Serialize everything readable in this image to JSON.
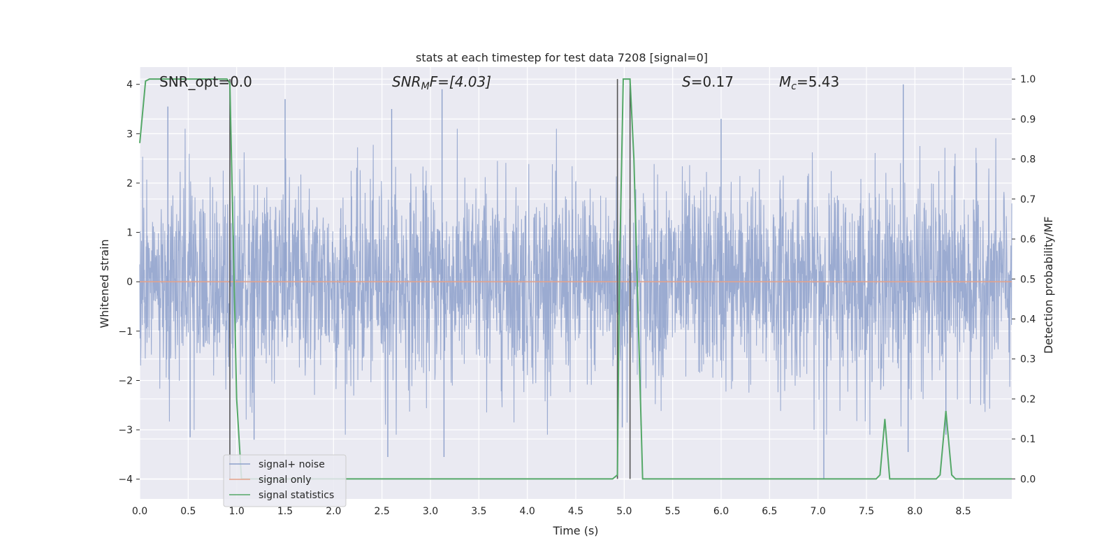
{
  "chart_data": {
    "type": "line",
    "title": "stats at each timestep for test data 7208 [signal=0]",
    "xlabel": "Time (s)",
    "ylabel": "Whitened strain",
    "y2label": "Detection probability/MF",
    "xlim": [
      0,
      9.0
    ],
    "ylim": [
      -4.4,
      4.35
    ],
    "y2lim": [
      -0.05,
      1.03
    ],
    "xticks": [
      "0.0",
      "0.5",
      "1.0",
      "1.5",
      "2.0",
      "2.5",
      "3.0",
      "3.5",
      "4.0",
      "4.5",
      "5.0",
      "5.5",
      "6.0",
      "6.5",
      "7.0",
      "7.5",
      "8.0",
      "8.5"
    ],
    "yticks": [
      "4",
      "3",
      "2",
      "1",
      "0",
      "−1",
      "−2",
      "−3",
      "−4"
    ],
    "y2ticks": [
      "1.0",
      "0.9",
      "0.8",
      "0.7",
      "0.6",
      "0.5",
      "0.4",
      "0.3",
      "0.2",
      "0.1",
      "0.0"
    ],
    "grid": true,
    "legend_position": "lower-left",
    "annotations": {
      "snr_opt": "SNR_opt=0.0",
      "snr_mf_base": "SNR",
      "snr_mf_sub": "M",
      "snr_mf_rest": "F=[4.03]",
      "s_italic": "S",
      "s_rest": "=0.17",
      "mc_base": "M",
      "mc_sub": "c",
      "mc_rest": "=5.43"
    },
    "vertical_lines_x": [
      0.93,
      4.93,
      5.06
    ],
    "series": [
      {
        "name": "signal+ noise",
        "color": "#8da0cb",
        "kind": "noise",
        "spikes": [
          {
            "x": 0.29,
            "y": 3.55
          },
          {
            "x": 1.5,
            "y": 3.7
          },
          {
            "x": 2.6,
            "y": 3.5
          },
          {
            "x": 3.12,
            "y": 3.9
          },
          {
            "x": 6.0,
            "y": 3.3
          },
          {
            "x": 7.88,
            "y": 4.0
          },
          {
            "x": 2.56,
            "y": -3.55
          },
          {
            "x": 3.14,
            "y": -3.55
          },
          {
            "x": 7.06,
            "y": -4.0
          },
          {
            "x": 7.93,
            "y": -3.45
          },
          {
            "x": 0.52,
            "y": -3.15
          },
          {
            "x": 1.18,
            "y": -3.2
          },
          {
            "x": 4.98,
            "y": -2.95
          },
          {
            "x": 8.32,
            "y": -3.1
          }
        ]
      },
      {
        "name": "signal only",
        "color": "#e5a28a",
        "kind": "flat",
        "value": 0
      },
      {
        "name": "signal statistics",
        "color": "#55a868",
        "axis": "right",
        "x": [
          0.0,
          0.06,
          0.1,
          0.2,
          0.85,
          0.9,
          0.93,
          1.0,
          1.05,
          1.08,
          1.1,
          4.88,
          4.93,
          4.95,
          4.99,
          5.06,
          5.1,
          5.19,
          7.6,
          7.64,
          7.69,
          7.74,
          8.22,
          8.26,
          8.32,
          8.38,
          8.42,
          9.0
        ],
        "y": [
          0.84,
          0.995,
          1.0,
          1.0,
          1.0,
          1.0,
          0.99,
          0.2,
          0.0,
          0.0,
          0.0,
          0.0,
          0.01,
          0.5,
          1.0,
          1.0,
          0.8,
          0.0,
          0.0,
          0.01,
          0.15,
          0.0,
          0.0,
          0.01,
          0.17,
          0.01,
          0.0,
          0.0
        ]
      }
    ]
  }
}
